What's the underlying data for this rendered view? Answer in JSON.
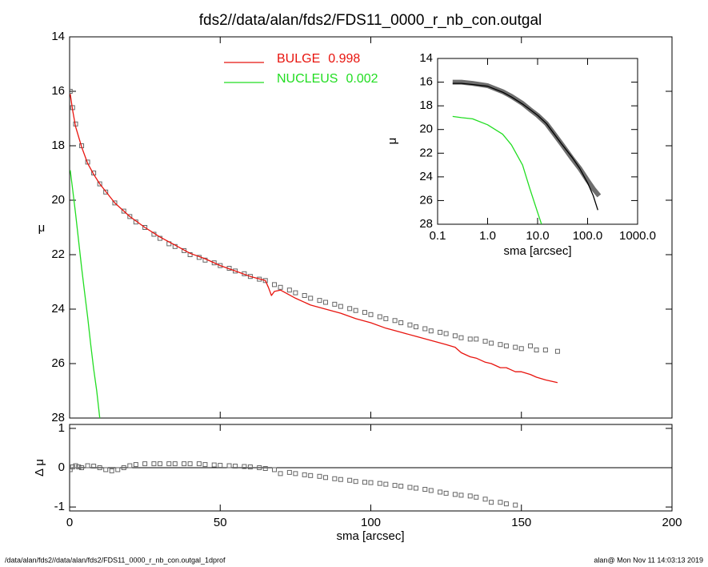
{
  "chart_data": [
    {
      "type": "line",
      "title": "fds2//data/alan/fds2/FDS11_0000_r_nb_con.outgal",
      "ylabel": "μ",
      "xlim": [
        0,
        200
      ],
      "ylim": [
        28,
        14
      ],
      "yticks": [
        14,
        16,
        18,
        20,
        22,
        24,
        26,
        28
      ],
      "series": [
        {
          "style": "squares",
          "color": "#666666",
          "x": [
            0.2,
            1,
            2,
            4,
            6,
            8,
            10,
            12,
            15,
            18,
            20,
            22,
            25,
            28,
            30,
            33,
            35,
            38,
            40,
            43,
            45,
            48,
            50,
            53,
            55,
            58,
            60,
            63,
            65,
            68,
            70,
            73,
            75,
            78,
            80,
            83,
            85,
            88,
            90,
            93,
            95,
            98,
            100,
            103,
            105,
            108,
            110,
            113,
            115,
            118,
            120,
            123,
            125,
            128,
            130,
            133,
            135,
            138,
            140,
            143,
            145,
            148,
            150,
            153,
            155,
            158,
            162
          ],
          "values": [
            16.0,
            16.6,
            17.2,
            18.0,
            18.6,
            19.0,
            19.4,
            19.7,
            20.1,
            20.4,
            20.6,
            20.8,
            21.0,
            21.25,
            21.4,
            21.6,
            21.7,
            21.85,
            22.0,
            22.1,
            22.2,
            22.3,
            22.4,
            22.5,
            22.6,
            22.7,
            22.8,
            22.9,
            22.95,
            23.1,
            23.2,
            23.3,
            23.4,
            23.5,
            23.6,
            23.68,
            23.75,
            23.82,
            23.9,
            23.98,
            24.05,
            24.12,
            24.2,
            24.28,
            24.35,
            24.42,
            24.5,
            24.58,
            24.65,
            24.72,
            24.8,
            24.85,
            24.9,
            24.98,
            25.05,
            25.1,
            25.1,
            25.18,
            25.25,
            25.3,
            25.35,
            25.4,
            25.45,
            25.35,
            25.5,
            25.5,
            25.55
          ]
        },
        {
          "name": "BULGE",
          "fraction": 0.998,
          "style": "line",
          "color": "#e8140e",
          "x": [
            0.2,
            1,
            2,
            4,
            6,
            8,
            10,
            15,
            20,
            25,
            30,
            35,
            40,
            45,
            50,
            55,
            60,
            65,
            66,
            67,
            68,
            70,
            75,
            80,
            85,
            90,
            95,
            100,
            105,
            110,
            115,
            120,
            125,
            128,
            130,
            133,
            135,
            138,
            140,
            143,
            145,
            148,
            150,
            153,
            155,
            158,
            162
          ],
          "values": [
            16.1,
            16.7,
            17.3,
            18.05,
            18.65,
            19.05,
            19.4,
            20.1,
            20.6,
            21.0,
            21.35,
            21.65,
            21.95,
            22.15,
            22.4,
            22.6,
            22.8,
            22.95,
            23.2,
            23.5,
            23.35,
            23.3,
            23.6,
            23.85,
            24.0,
            24.15,
            24.35,
            24.5,
            24.7,
            24.85,
            25.0,
            25.15,
            25.3,
            25.4,
            25.6,
            25.75,
            25.8,
            25.95,
            26.0,
            26.15,
            26.15,
            26.3,
            26.3,
            26.4,
            26.5,
            26.6,
            26.7
          ]
        },
        {
          "name": "NUCLEUS",
          "fraction": 0.002,
          "style": "line",
          "color": "#22dd22",
          "x": [
            0.2,
            1,
            2,
            3,
            4,
            5,
            6,
            7,
            8,
            9,
            10
          ],
          "values": [
            18.9,
            19.6,
            20.5,
            21.5,
            22.5,
            23.4,
            24.3,
            25.3,
            26.2,
            27.0,
            28.0
          ]
        }
      ],
      "footnote_left": "/data/alan/fds2//data/alan/fds2/FDS11_0000_r_nb_con.outgal_1dprof",
      "footnote_right": "alan@  Mon Nov 11 14:03:13 2019"
    },
    {
      "type": "scatter",
      "ylabel": "Δ μ",
      "xlabel": "sma [arcsec]",
      "xlim": [
        0,
        200
      ],
      "xticks": [
        0,
        50,
        100,
        150,
        200
      ],
      "ylim": [
        -1.1,
        1.1
      ],
      "yticks": [
        -1,
        0,
        1
      ],
      "hline": 0,
      "series": [
        {
          "style": "squares",
          "color": "#666666",
          "x": [
            0.2,
            1,
            2,
            3,
            4,
            6,
            8,
            10,
            12,
            14,
            16,
            18,
            20,
            22,
            25,
            28,
            30,
            33,
            35,
            38,
            40,
            43,
            45,
            48,
            50,
            53,
            55,
            58,
            60,
            63,
            65,
            68,
            70,
            73,
            75,
            78,
            80,
            83,
            85,
            88,
            90,
            93,
            95,
            98,
            100,
            103,
            105,
            108,
            110,
            113,
            115,
            118,
            120,
            123,
            125,
            128,
            130,
            133,
            135,
            138,
            140,
            143,
            145,
            148
          ],
          "values": [
            -0.05,
            0.02,
            0.05,
            0.02,
            0.0,
            0.05,
            0.04,
            0.0,
            -0.05,
            -0.08,
            -0.05,
            0.0,
            0.05,
            0.08,
            0.1,
            0.1,
            0.1,
            0.1,
            0.1,
            0.1,
            0.1,
            0.1,
            0.08,
            0.07,
            0.06,
            0.05,
            0.04,
            0.03,
            0.02,
            0.0,
            -0.02,
            -0.05,
            -0.15,
            -0.12,
            -0.15,
            -0.18,
            -0.2,
            -0.22,
            -0.25,
            -0.28,
            -0.3,
            -0.32,
            -0.35,
            -0.37,
            -0.38,
            -0.4,
            -0.42,
            -0.45,
            -0.47,
            -0.5,
            -0.52,
            -0.55,
            -0.58,
            -0.62,
            -0.65,
            -0.68,
            -0.7,
            -0.72,
            -0.75,
            -0.8,
            -0.88,
            -0.88,
            -0.92,
            -0.95
          ]
        }
      ]
    },
    {
      "type": "line",
      "ylabel": "μ",
      "xlabel": "sma [arcsec]",
      "log_x": true,
      "xlim": [
        0.1,
        1000
      ],
      "xticks": [
        {
          "value": 0.1,
          "label": "0.1"
        },
        {
          "value": 1,
          "label": "1.0"
        },
        {
          "value": 10,
          "label": "10.0"
        },
        {
          "value": 100,
          "label": "100.0"
        },
        {
          "value": 1000,
          "label": "1000.0"
        }
      ],
      "ylim": [
        28,
        14
      ],
      "yticks": [
        14,
        16,
        18,
        20,
        22,
        24,
        26,
        28
      ],
      "series": [
        {
          "style": "band",
          "color": "#555555",
          "x": [
            0.2,
            0.3,
            0.5,
            1,
            2,
            3,
            5,
            7,
            10,
            15,
            20,
            30,
            50,
            70,
            100,
            130,
            170
          ],
          "values": [
            16.0,
            16.0,
            16.1,
            16.3,
            16.8,
            17.2,
            17.8,
            18.3,
            18.8,
            19.5,
            20.2,
            21.2,
            22.5,
            23.3,
            24.3,
            25.0,
            25.6
          ]
        },
        {
          "style": "line",
          "color": "#000000",
          "x": [
            0.2,
            0.3,
            0.5,
            1,
            2,
            3,
            5,
            7,
            10,
            15,
            20,
            30,
            50,
            70,
            100,
            130,
            160
          ],
          "values": [
            16.1,
            16.1,
            16.2,
            16.35,
            16.85,
            17.25,
            17.85,
            18.3,
            18.8,
            19.5,
            20.2,
            21.2,
            22.4,
            23.3,
            24.5,
            25.6,
            26.8
          ]
        },
        {
          "style": "line",
          "color": "#22dd22",
          "x": [
            0.2,
            0.3,
            0.5,
            1,
            2,
            3,
            5,
            7,
            10,
            12
          ],
          "values": [
            18.9,
            19.0,
            19.1,
            19.6,
            20.4,
            21.3,
            23.0,
            25.0,
            27.0,
            28.0
          ]
        }
      ]
    }
  ]
}
